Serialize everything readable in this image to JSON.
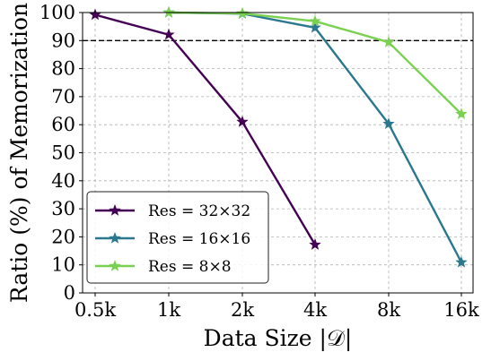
{
  "chart_data": {
    "type": "line",
    "categories": [
      "0.5k",
      "1k",
      "2k",
      "4k",
      "8k",
      "16k"
    ],
    "xlabel": "Data Size |𝒟|",
    "ylabel": "Ratio (%) of Memorization",
    "ylim": [
      0,
      100
    ],
    "yticks": [
      0,
      10,
      20,
      30,
      40,
      50,
      60,
      70,
      80,
      90,
      100
    ],
    "grid": true,
    "legend_position": "bottom-left",
    "reference_line": {
      "y": 90,
      "style": "dashed",
      "color": "#000000"
    },
    "series": [
      {
        "name": "Res = 32×32",
        "color": "#440154",
        "marker": "star",
        "values": [
          99.2,
          92.1,
          61.0,
          17.2,
          null,
          null
        ]
      },
      {
        "name": "Res = 16×16",
        "color": "#2a788e",
        "marker": "star",
        "values": [
          null,
          100.0,
          99.6,
          94.6,
          60.3,
          10.9
        ]
      },
      {
        "name": "Res = 8×8",
        "color": "#7ad151",
        "marker": "star",
        "values": [
          null,
          100.0,
          99.7,
          96.9,
          89.4,
          63.8
        ]
      }
    ]
  }
}
